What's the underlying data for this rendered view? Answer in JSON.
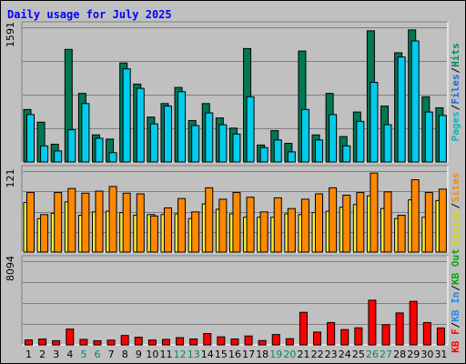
{
  "title": "Daily usage for July 2025",
  "colors": {
    "pages": "#007755",
    "files": "#00ccee",
    "hits": "#00bbbb",
    "visits": "#ffee33",
    "sites": "#ff8800",
    "kb_in": "#2288ee",
    "kb_out": "#00aa00",
    "kb_f": "#ff0000",
    "frame_bg": "#c0c0c0",
    "title": "#0000ff",
    "weekend_day": "#008866"
  },
  "chart_data": [
    {
      "type": "bar",
      "panel": "hits",
      "max_label": "1591",
      "ylim": [
        0,
        1591
      ],
      "grid": true,
      "categories": [
        "1",
        "2",
        "3",
        "4",
        "5",
        "6",
        "7",
        "8",
        "9",
        "10",
        "11",
        "12",
        "13",
        "14",
        "15",
        "16",
        "17",
        "18",
        "19",
        "20",
        "21",
        "22",
        "23",
        "24",
        "25",
        "26",
        "27",
        "28",
        "29",
        "30",
        "31"
      ],
      "weekend_days": [
        "5",
        "6",
        "12",
        "13",
        "19",
        "20",
        "26",
        "27"
      ],
      "legend_position": "right",
      "legend": [
        {
          "text": "Pages",
          "color": "#00bbbb"
        },
        {
          "text": "/",
          "color": "#000000"
        },
        {
          "text": "Files",
          "color": "#2266dd"
        },
        {
          "text": "/",
          "color": "#000000"
        },
        {
          "text": "Hits",
          "color": "#008866"
        }
      ],
      "series": [
        {
          "name": "Hits",
          "color": "#007755",
          "values": [
            620,
            470,
            210,
            1330,
            810,
            320,
            270,
            1170,
            920,
            530,
            690,
            880,
            490,
            690,
            520,
            400,
            1340,
            200,
            370,
            220,
            1310,
            320,
            810,
            300,
            590,
            1550,
            660,
            1290,
            1560,
            770,
            640
          ]
        },
        {
          "name": "Files",
          "color": "#00ccee",
          "values": [
            560,
            190,
            130,
            380,
            690,
            280,
            110,
            1100,
            870,
            450,
            660,
            830,
            430,
            580,
            440,
            330,
            770,
            170,
            260,
            120,
            620,
            260,
            560,
            190,
            480,
            940,
            440,
            1240,
            1430,
            590,
            550
          ]
        }
      ]
    },
    {
      "type": "bar",
      "panel": "visits",
      "max_label": "121",
      "ylim": [
        0,
        121
      ],
      "grid": true,
      "legend_position": "right",
      "legend": [
        {
          "text": "Visits",
          "color": "#dddd00"
        },
        {
          "text": "/",
          "color": "#000000"
        },
        {
          "text": "Sites",
          "color": "#ff8800"
        }
      ],
      "series": [
        {
          "name": "Visits",
          "color": "#ffee33",
          "values": [
            74,
            50,
            58,
            75,
            55,
            60,
            61,
            59,
            55,
            56,
            56,
            57,
            50,
            72,
            64,
            57,
            52,
            52,
            52,
            57,
            56,
            59,
            61,
            67,
            71,
            84,
            65,
            50,
            78,
            52,
            77
          ]
        },
        {
          "name": "Sites",
          "color": "#ff8800",
          "values": [
            89,
            56,
            89,
            95,
            88,
            91,
            98,
            88,
            87,
            54,
            66,
            80,
            60,
            96,
            79,
            89,
            82,
            60,
            81,
            65,
            79,
            87,
            96,
            85,
            89,
            118,
            90,
            55,
            108,
            89,
            94
          ]
        }
      ]
    },
    {
      "type": "bar",
      "panel": "kb",
      "max_label": "8094",
      "ylim": [
        0,
        8094
      ],
      "grid": true,
      "legend_position": "right",
      "legend": [
        {
          "text": "KB F",
          "color": "#ff0000"
        },
        {
          "text": "/",
          "color": "#000000"
        },
        {
          "text": "KB In",
          "color": "#2288ee"
        },
        {
          "text": "/",
          "color": "#000000"
        },
        {
          "text": "KB Out",
          "color": "#00aa00"
        }
      ],
      "series": [
        {
          "name": "KB F",
          "color": "#ff0000",
          "values": [
            480,
            560,
            400,
            1530,
            530,
            400,
            460,
            910,
            740,
            470,
            530,
            700,
            570,
            1100,
            780,
            570,
            860,
            420,
            1000,
            600,
            3150,
            1240,
            2160,
            1480,
            1650,
            4320,
            1950,
            3090,
            4210,
            2160,
            1640
          ]
        }
      ]
    }
  ]
}
